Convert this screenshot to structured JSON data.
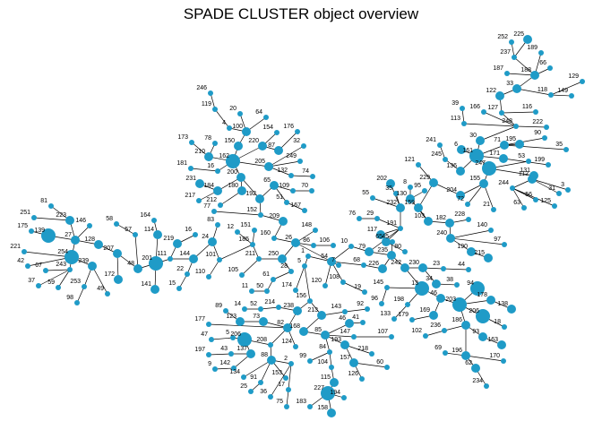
{
  "title": "SPADE CLUSTER object overview",
  "colors": {
    "node": "#1f9bc7",
    "edge": "#000000"
  },
  "tree": {
    "node_sizes_encode": "relative cluster size",
    "labeled_nodes": [
      {
        "id": "1",
        "size": 1
      },
      {
        "id": "2",
        "size": 1
      },
      {
        "id": "3",
        "size": 1
      },
      {
        "id": "4",
        "size": 1
      },
      {
        "id": "5",
        "size": 1
      },
      {
        "id": "6",
        "size": 2
      },
      {
        "id": "8",
        "size": 1
      },
      {
        "id": "9",
        "size": 1
      },
      {
        "id": "10",
        "size": 1
      },
      {
        "id": "11",
        "size": 1
      },
      {
        "id": "12",
        "size": 1
      },
      {
        "id": "13",
        "size": 3
      },
      {
        "id": "14",
        "size": 1
      },
      {
        "id": "15",
        "size": 1
      },
      {
        "id": "16",
        "size": 1
      },
      {
        "id": "17",
        "size": 1
      },
      {
        "id": "18",
        "size": 1
      },
      {
        "id": "19",
        "size": 1
      },
      {
        "id": "20",
        "size": 1
      },
      {
        "id": "21",
        "size": 1
      },
      {
        "id": "22",
        "size": 1
      },
      {
        "id": "23",
        "size": 1
      },
      {
        "id": "24",
        "size": 2
      },
      {
        "id": "25",
        "size": 1
      },
      {
        "id": "26",
        "size": 2
      },
      {
        "id": "27",
        "size": 2
      },
      {
        "id": "28",
        "size": 1
      },
      {
        "id": "30",
        "size": 2
      },
      {
        "id": "31",
        "size": 1
      },
      {
        "id": "32",
        "size": 1
      },
      {
        "id": "33",
        "size": 2
      },
      {
        "id": "34",
        "size": 2
      },
      {
        "id": "35",
        "size": 1
      },
      {
        "id": "36",
        "size": 1
      },
      {
        "id": "37",
        "size": 1
      },
      {
        "id": "38",
        "size": 1
      },
      {
        "id": "39",
        "size": 1
      },
      {
        "id": "41",
        "size": 1
      },
      {
        "id": "42",
        "size": 1
      },
      {
        "id": "43",
        "size": 1
      },
      {
        "id": "44",
        "size": 1
      },
      {
        "id": "45",
        "size": 1
      },
      {
        "id": "46",
        "size": 2
      },
      {
        "id": "47",
        "size": 1
      },
      {
        "id": "48",
        "size": 2
      },
      {
        "id": "49",
        "size": 1
      },
      {
        "id": "50",
        "size": 1
      },
      {
        "id": "51",
        "size": 1
      },
      {
        "id": "52",
        "size": 1
      },
      {
        "id": "53",
        "size": 1
      },
      {
        "id": "54",
        "size": 2
      },
      {
        "id": "55",
        "size": 1
      },
      {
        "id": "56",
        "size": 1
      },
      {
        "id": "57",
        "size": 1
      },
      {
        "id": "58",
        "size": 1
      },
      {
        "id": "59",
        "size": 1
      },
      {
        "id": "60",
        "size": 1
      },
      {
        "id": "61",
        "size": 1
      },
      {
        "id": "62",
        "size": 2
      },
      {
        "id": "63",
        "size": 1
      },
      {
        "id": "64",
        "size": 1
      },
      {
        "id": "65",
        "size": 2
      },
      {
        "id": "66",
        "size": 1
      },
      {
        "id": "67",
        "size": 1
      },
      {
        "id": "68",
        "size": 1
      },
      {
        "id": "69",
        "size": 1
      },
      {
        "id": "70",
        "size": 1
      },
      {
        "id": "71",
        "size": 2
      },
      {
        "id": "72",
        "size": 1
      },
      {
        "id": "73",
        "size": 2
      },
      {
        "id": "74",
        "size": 1
      },
      {
        "id": "75",
        "size": 1
      },
      {
        "id": "76",
        "size": 1
      },
      {
        "id": "77",
        "size": 1
      },
      {
        "id": "78",
        "size": 1
      },
      {
        "id": "79",
        "size": 2
      },
      {
        "id": "80",
        "size": 1
      },
      {
        "id": "81",
        "size": 1
      },
      {
        "id": "82",
        "size": 2
      },
      {
        "id": "83",
        "size": 1
      },
      {
        "id": "84",
        "size": 1
      },
      {
        "id": "85",
        "size": 2
      },
      {
        "id": "86",
        "size": 1
      },
      {
        "id": "87",
        "size": 2
      },
      {
        "id": "88",
        "size": 2
      },
      {
        "id": "89",
        "size": 1
      },
      {
        "id": "90",
        "size": 1
      },
      {
        "id": "91",
        "size": 1
      },
      {
        "id": "92",
        "size": 1
      },
      {
        "id": "93",
        "size": 2
      },
      {
        "id": "94",
        "size": 3
      },
      {
        "id": "95",
        "size": 1
      },
      {
        "id": "96",
        "size": 1
      },
      {
        "id": "97",
        "size": 1
      },
      {
        "id": "98",
        "size": 1
      },
      {
        "id": "99",
        "size": 1
      },
      {
        "id": "100",
        "size": 2
      },
      {
        "id": "101",
        "size": 1
      },
      {
        "id": "102",
        "size": 1
      },
      {
        "id": "103",
        "size": 2
      },
      {
        "id": "104",
        "size": 1
      },
      {
        "id": "105",
        "size": 1
      },
      {
        "id": "106",
        "size": 1
      },
      {
        "id": "107",
        "size": 1
      },
      {
        "id": "108",
        "size": 1
      },
      {
        "id": "109",
        "size": 1
      },
      {
        "id": "110",
        "size": 1
      },
      {
        "id": "111",
        "size": 1
      },
      {
        "id": "112",
        "size": 2
      },
      {
        "id": "113",
        "size": 1
      },
      {
        "id": "114",
        "size": 2
      },
      {
        "id": "115",
        "size": 2
      },
      {
        "id": "116",
        "size": 1
      },
      {
        "id": "117",
        "size": 2
      },
      {
        "id": "118",
        "size": 1
      },
      {
        "id": "119",
        "size": 1
      },
      {
        "id": "120",
        "size": 1
      },
      {
        "id": "121",
        "size": 1
      },
      {
        "id": "122",
        "size": 2
      },
      {
        "id": "123",
        "size": 2
      },
      {
        "id": "124",
        "size": 1
      },
      {
        "id": "125",
        "size": 1
      },
      {
        "id": "126",
        "size": 1
      },
      {
        "id": "127",
        "size": 1
      },
      {
        "id": "128",
        "size": 2
      },
      {
        "id": "129",
        "size": 1
      },
      {
        "id": "130",
        "size": 2
      },
      {
        "id": "131",
        "size": 2
      },
      {
        "id": "132",
        "size": 1
      },
      {
        "id": "133",
        "size": 1
      },
      {
        "id": "134",
        "size": 1
      },
      {
        "id": "136",
        "size": 2
      },
      {
        "id": "137",
        "size": 2
      },
      {
        "id": "138",
        "size": 2
      },
      {
        "id": "139",
        "size": 3
      },
      {
        "id": "140",
        "size": 1
      },
      {
        "id": "141",
        "size": 2
      },
      {
        "id": "142",
        "size": 1
      },
      {
        "id": "143",
        "size": 1
      },
      {
        "id": "144",
        "size": 2
      },
      {
        "id": "145",
        "size": 1
      },
      {
        "id": "146",
        "size": 1
      },
      {
        "id": "147",
        "size": 1
      },
      {
        "id": "148",
        "size": 1
      },
      {
        "id": "149",
        "size": 1
      },
      {
        "id": "150",
        "size": 2
      },
      {
        "id": "151",
        "size": 1
      },
      {
        "id": "152",
        "size": 1
      },
      {
        "id": "153",
        "size": 1
      },
      {
        "id": "154",
        "size": 1
      },
      {
        "id": "155",
        "size": 2
      },
      {
        "id": "156",
        "size": 1
      },
      {
        "id": "157",
        "size": 2
      },
      {
        "id": "158",
        "size": 2
      },
      {
        "id": "159",
        "size": 2
      },
      {
        "id": "160",
        "size": 1
      },
      {
        "id": "161",
        "size": 3
      },
      {
        "id": "162",
        "size": 3
      },
      {
        "id": "163",
        "size": 2
      },
      {
        "id": "164",
        "size": 1
      },
      {
        "id": "165",
        "size": 1
      },
      {
        "id": "166",
        "size": 1
      },
      {
        "id": "167",
        "size": 1
      },
      {
        "id": "168",
        "size": 2
      },
      {
        "id": "169",
        "size": 2
      },
      {
        "id": "170",
        "size": 1
      },
      {
        "id": "171",
        "size": 2
      },
      {
        "id": "172",
        "size": 2
      },
      {
        "id": "173",
        "size": 1
      },
      {
        "id": "174",
        "size": 1
      },
      {
        "id": "175",
        "size": 1
      },
      {
        "id": "176",
        "size": 1
      },
      {
        "id": "177",
        "size": 1
      },
      {
        "id": "178",
        "size": 2
      },
      {
        "id": "179",
        "size": 1
      },
      {
        "id": "180",
        "size": 2
      },
      {
        "id": "181",
        "size": 1
      },
      {
        "id": "182",
        "size": 2
      },
      {
        "id": "183",
        "size": 1
      },
      {
        "id": "184",
        "size": 2
      },
      {
        "id": "185",
        "size": 1
      },
      {
        "id": "186",
        "size": 2
      },
      {
        "id": "187",
        "size": 1
      },
      {
        "id": "188",
        "size": 2
      },
      {
        "id": "189",
        "size": 1
      },
      {
        "id": "190",
        "size": 2
      },
      {
        "id": "192",
        "size": 2
      },
      {
        "id": "193",
        "size": 2
      },
      {
        "id": "194",
        "size": 1
      },
      {
        "id": "195",
        "size": 2
      },
      {
        "id": "196",
        "size": 2
      },
      {
        "id": "197",
        "size": 1
      },
      {
        "id": "198",
        "size": 1
      },
      {
        "id": "199",
        "size": 1
      },
      {
        "id": "200",
        "size": 2
      },
      {
        "id": "201",
        "size": 3
      },
      {
        "id": "202",
        "size": 2
      },
      {
        "id": "203",
        "size": 3
      },
      {
        "id": "204",
        "size": 2
      },
      {
        "id": "205",
        "size": 2
      },
      {
        "id": "206",
        "size": 3
      },
      {
        "id": "207",
        "size": 2
      },
      {
        "id": "209",
        "size": 2
      },
      {
        "id": "210",
        "size": 2
      },
      {
        "id": "211",
        "size": 1
      },
      {
        "id": "212",
        "size": 1
      },
      {
        "id": "213",
        "size": 2
      },
      {
        "id": "214",
        "size": 1
      },
      {
        "id": "215",
        "size": 2
      },
      {
        "id": "217",
        "size": 1
      },
      {
        "id": "218",
        "size": 1
      },
      {
        "id": "219",
        "size": 2
      },
      {
        "id": "220",
        "size": 2
      },
      {
        "id": "221",
        "size": 1
      },
      {
        "id": "222",
        "size": 1
      },
      {
        "id": "223",
        "size": 2
      },
      {
        "id": "225",
        "size": 2
      },
      {
        "id": "226",
        "size": 2
      },
      {
        "id": "227",
        "size": 3
      },
      {
        "id": "228",
        "size": 1
      },
      {
        "id": "229",
        "size": 2
      },
      {
        "id": "230",
        "size": 2
      },
      {
        "id": "231",
        "size": 2
      },
      {
        "id": "232",
        "size": 2
      },
      {
        "id": "234",
        "size": 1
      },
      {
        "id": "235",
        "size": 2
      },
      {
        "id": "236",
        "size": 1
      },
      {
        "id": "237",
        "size": 1
      },
      {
        "id": "238",
        "size": 2
      },
      {
        "id": "239",
        "size": 2
      },
      {
        "id": "240",
        "size": 2
      },
      {
        "id": "241",
        "size": 1
      },
      {
        "id": "242",
        "size": 2
      },
      {
        "id": "243",
        "size": 1
      },
      {
        "id": "244",
        "size": 1
      },
      {
        "id": "245",
        "size": 1
      },
      {
        "id": "246",
        "size": 1
      },
      {
        "id": "247",
        "size": 3
      },
      {
        "id": "248",
        "size": 1
      },
      {
        "id": "249",
        "size": 1
      },
      {
        "id": "250",
        "size": 2
      },
      {
        "id": "251",
        "size": 1
      },
      {
        "id": "252",
        "size": 1
      },
      {
        "id": "253",
        "size": 1
      },
      {
        "id": "254",
        "size": 3
      }
    ]
  }
}
